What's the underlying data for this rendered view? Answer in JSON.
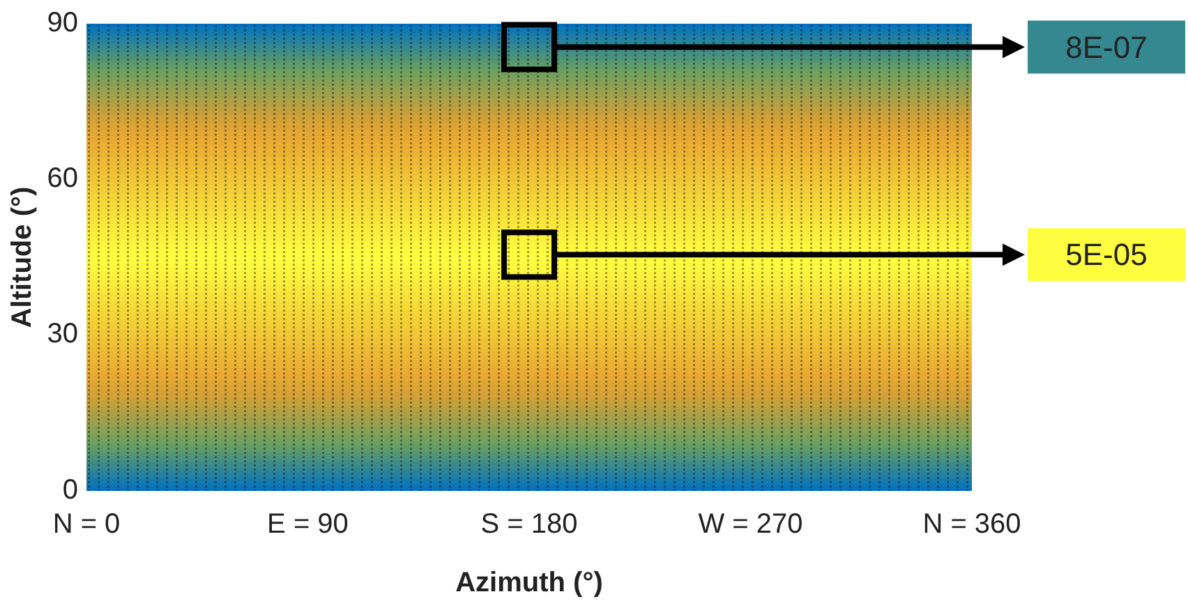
{
  "chart_data": {
    "type": "scatter",
    "xlabel": "Azimuth (°)",
    "ylabel": "Altitude (°)",
    "xlim": [
      0,
      360
    ],
    "xticks": [
      {
        "value": 0,
        "label": "N = 0"
      },
      {
        "value": 90,
        "label": "E = 90"
      },
      {
        "value": 180,
        "label": "S = 180"
      },
      {
        "value": 270,
        "label": "W = 270"
      },
      {
        "value": 360,
        "label": "N = 360"
      }
    ],
    "ylim": [
      0,
      90
    ],
    "yticks": [
      0,
      30,
      60,
      90
    ],
    "marker": "square",
    "x": [
      180,
      180
    ],
    "values": [
      85.5,
      45.5
    ],
    "annotations": [
      "8E-07",
      "5E-05"
    ]
  }
}
